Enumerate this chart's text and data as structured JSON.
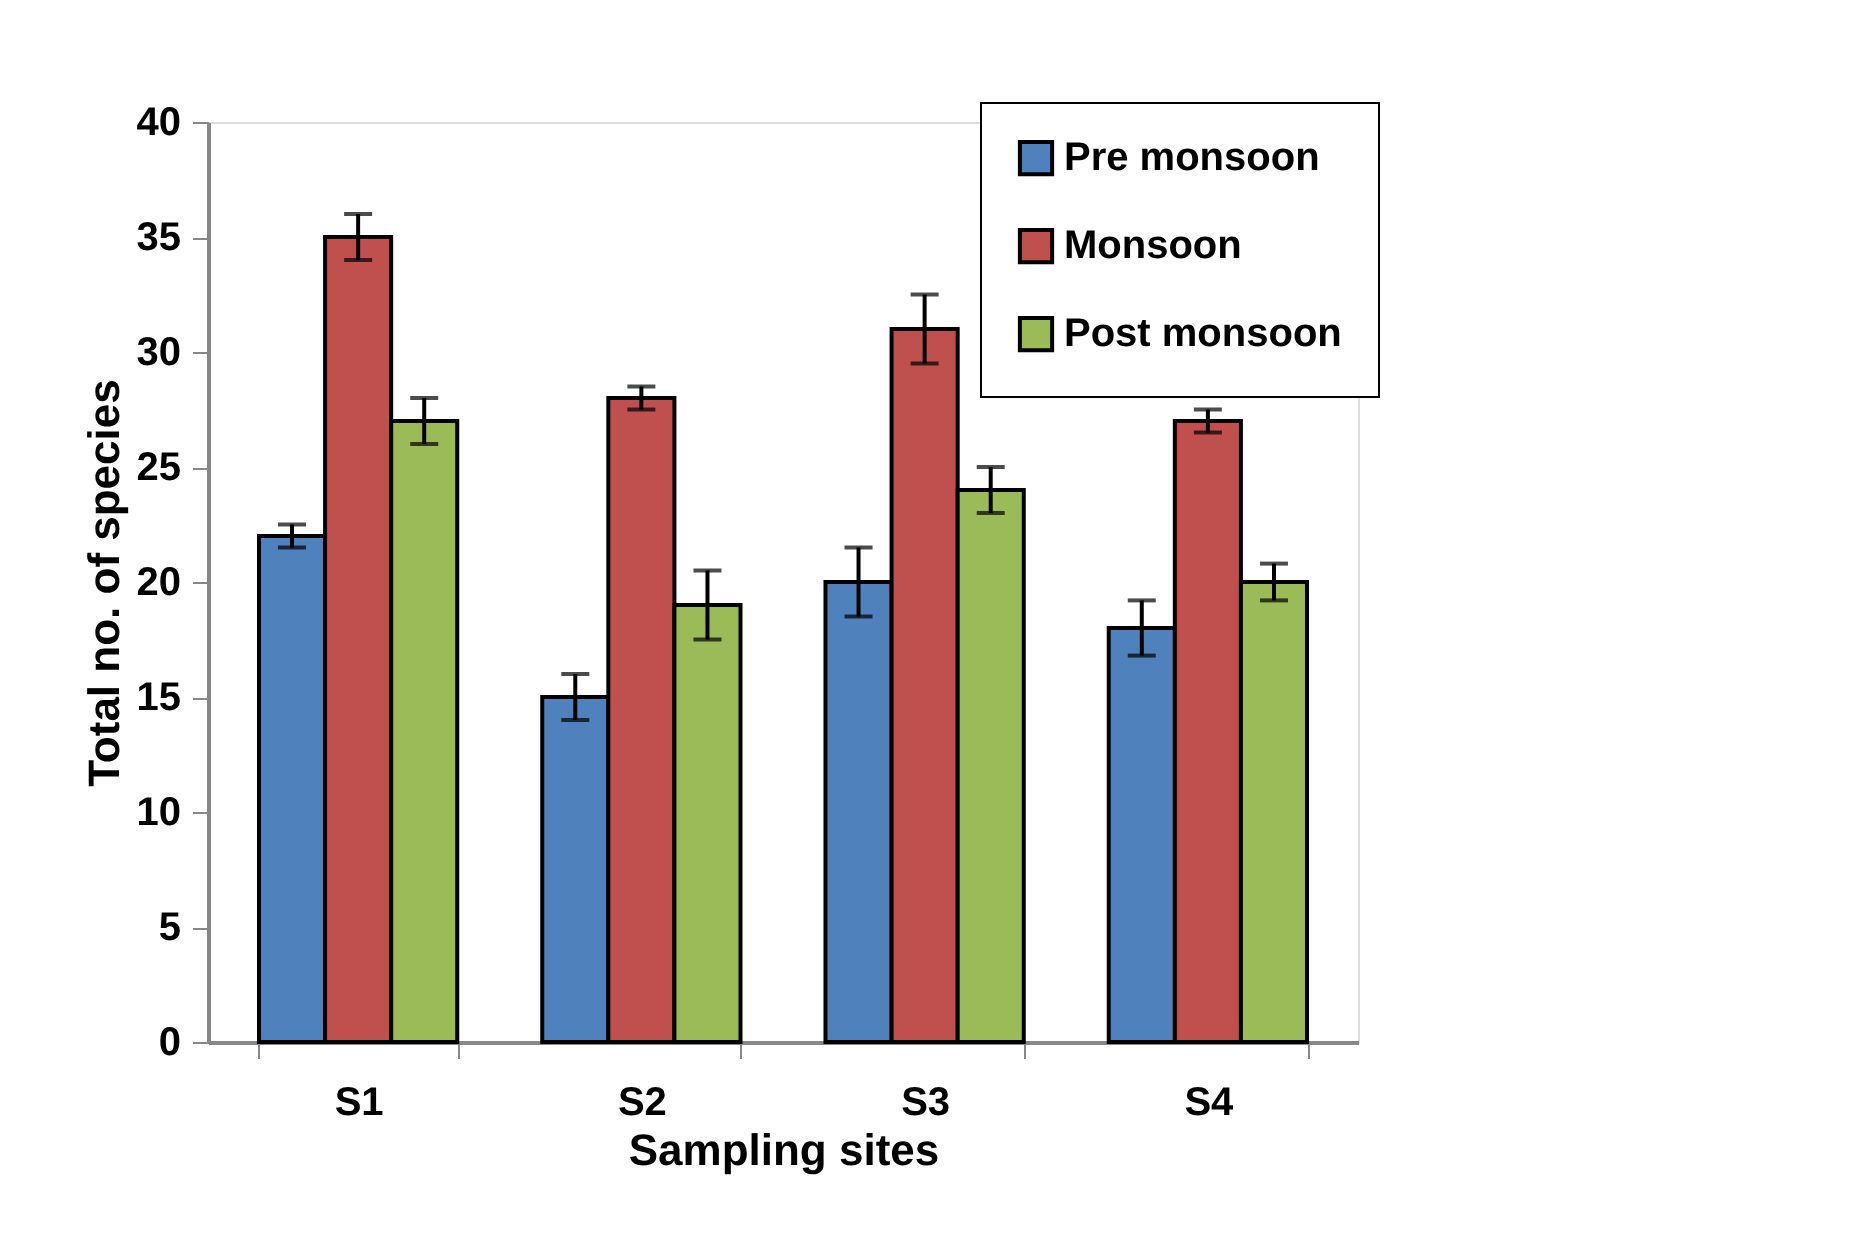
{
  "chart_data": {
    "type": "bar",
    "xlabel": "Sampling sites",
    "ylabel": "Total no. of species",
    "categories": [
      "S1",
      "S2",
      "S3",
      "S4"
    ],
    "series": [
      {
        "name": "Pre monsoon",
        "color": "#4f81bd",
        "values": [
          22,
          15,
          20,
          18
        ],
        "errors": [
          0.5,
          1,
          1.5,
          1.2
        ]
      },
      {
        "name": "Monsoon",
        "color": "#c0504d",
        "values": [
          35,
          28,
          31,
          27
        ],
        "errors": [
          1,
          0.5,
          1.5,
          0.5
        ]
      },
      {
        "name": "Post monsoon",
        "color": "#9bbb59",
        "values": [
          27,
          19,
          24,
          20
        ],
        "errors": [
          1,
          1.5,
          1,
          0.8
        ]
      }
    ],
    "ylim": [
      0,
      40
    ],
    "yticks": [
      0,
      5,
      10,
      15,
      20,
      25,
      30,
      35,
      40
    ],
    "grid": false,
    "legend": "top right"
  }
}
